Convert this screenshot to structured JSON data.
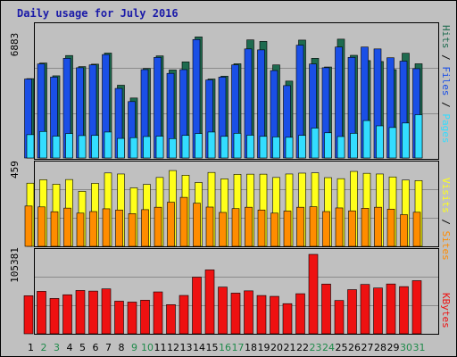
{
  "colors": {
    "background": "#c0c0c0",
    "border": "#000000",
    "title": "#1a1aa8",
    "pages": "#1e6b4f",
    "files": "#1a4fe6",
    "hits": "#33ddff",
    "visits": "#ffff1a",
    "sites": "#ff8c00",
    "kbytes": "#ee1111",
    "weekday": "#000000",
    "weekend": "#1e8a4a",
    "legend_sep": "#000000"
  },
  "chart_data": [
    {
      "type": "bar",
      "title": "Daily usage for July 2016",
      "panel": "pages-files-hits",
      "y_max_label": "6883",
      "ylim": [
        0,
        6883
      ],
      "categories": [
        "1",
        "2",
        "3",
        "4",
        "5",
        "6",
        "7",
        "8",
        "9",
        "10",
        "11",
        "12",
        "13",
        "14",
        "15",
        "16",
        "17",
        "18",
        "19",
        "20",
        "21",
        "22",
        "23",
        "24",
        "25",
        "26",
        "27",
        "28",
        "29",
        "30",
        "31"
      ],
      "weekend_days": [
        "2",
        "3",
        "9",
        "10",
        "16",
        "17",
        "23",
        "24",
        "30",
        "31"
      ],
      "legend": [
        "Hits",
        "Files",
        "Pages"
      ],
      "series": [
        {
          "name": "Hits",
          "values": [
            4220,
            5050,
            4370,
            5450,
            4860,
            4990,
            5580,
            3870,
            3190,
            4760,
            5430,
            4680,
            5110,
            6440,
            4200,
            4350,
            5010,
            6280,
            6200,
            4950,
            4090,
            6270,
            5300,
            4840,
            6320,
            5460,
            5180,
            5130,
            4700,
            5570,
            5010
          ]
        },
        {
          "name": "Files",
          "values": [
            4200,
            5000,
            4300,
            5300,
            4800,
            4950,
            5500,
            3700,
            3000,
            4700,
            5350,
            4500,
            4700,
            6300,
            4150,
            4300,
            4950,
            5800,
            5750,
            4650,
            3850,
            6000,
            5000,
            4800,
            5900,
            5350,
            5900,
            5800,
            5330,
            5150,
            4750
          ]
        },
        {
          "name": "Pages",
          "values": [
            1240,
            1410,
            1160,
            1300,
            1190,
            1200,
            1380,
            1040,
            1080,
            1140,
            1160,
            1030,
            1200,
            1300,
            1380,
            1150,
            1310,
            1210,
            1150,
            1120,
            1100,
            1200,
            1590,
            1340,
            1140,
            1310,
            1990,
            1710,
            1620,
            1860,
            2300
          ]
        }
      ]
    },
    {
      "type": "bar",
      "panel": "visits-sites",
      "y_max_label": "459",
      "ylim": [
        0,
        459
      ],
      "categories": [
        "1",
        "2",
        "3",
        "4",
        "5",
        "6",
        "7",
        "8",
        "9",
        "10",
        "11",
        "12",
        "13",
        "14",
        "15",
        "16",
        "17",
        "18",
        "19",
        "20",
        "21",
        "22",
        "23",
        "24",
        "25",
        "26",
        "27",
        "28",
        "29",
        "30",
        "31"
      ],
      "legend": [
        "Visits",
        "Sites"
      ],
      "series": [
        {
          "name": "Visits",
          "values": [
            365,
            385,
            359,
            386,
            318,
            364,
            424,
            418,
            338,
            358,
            398,
            438,
            411,
            369,
            427,
            390,
            416,
            417,
            417,
            398,
            418,
            423,
            425,
            397,
            391,
            433,
            422,
            418,
            401,
            383,
            380
          ]
        },
        {
          "name": "Sites",
          "values": [
            233,
            228,
            200,
            221,
            192,
            201,
            217,
            210,
            189,
            212,
            226,
            255,
            283,
            249,
            227,
            196,
            218,
            226,
            210,
            192,
            204,
            226,
            229,
            201,
            222,
            205,
            220,
            226,
            215,
            183,
            197
          ]
        }
      ]
    },
    {
      "type": "bar",
      "panel": "kbytes",
      "y_max_label": "105381",
      "ylim": [
        0,
        105381
      ],
      "categories": [
        "1",
        "2",
        "3",
        "4",
        "5",
        "6",
        "7",
        "8",
        "9",
        "10",
        "11",
        "12",
        "13",
        "14",
        "15",
        "16",
        "17",
        "18",
        "19",
        "20",
        "21",
        "22",
        "23",
        "24",
        "25",
        "26",
        "27",
        "28",
        "29",
        "30",
        "31"
      ],
      "legend": [
        "KBytes"
      ],
      "series": [
        {
          "name": "KBytes",
          "values": [
            50500,
            56400,
            46900,
            51800,
            57500,
            56700,
            59600,
            43300,
            42100,
            44600,
            55600,
            38700,
            50900,
            75200,
            84800,
            62000,
            54000,
            57000,
            50800,
            49700,
            40000,
            53200,
            105381,
            66000,
            44200,
            58600,
            65500,
            60800,
            66100,
            62600,
            70500
          ]
        }
      ]
    }
  ]
}
